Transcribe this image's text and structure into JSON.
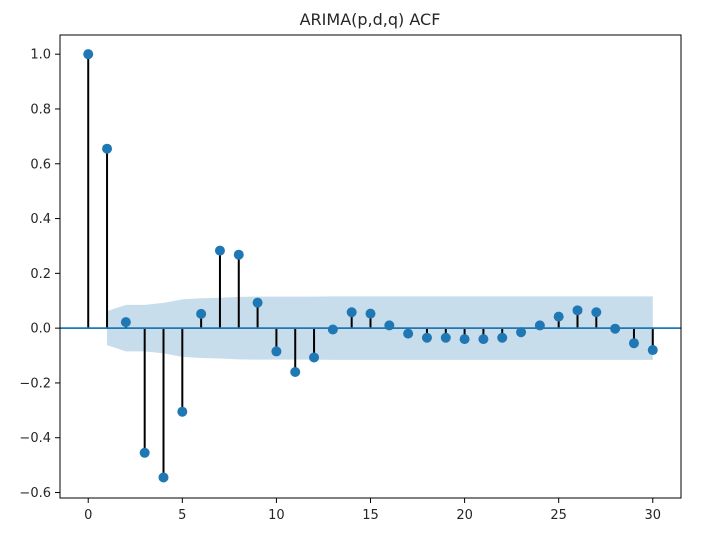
{
  "chart_data": {
    "type": "stem",
    "title": "ARIMA(p,d,q) ACF",
    "xlabel": "",
    "ylabel": "",
    "xlim": [
      -1.5,
      31.5
    ],
    "ylim": [
      -0.62,
      1.07
    ],
    "x_ticks": [
      0,
      5,
      10,
      15,
      20,
      25,
      30
    ],
    "y_ticks": [
      -0.6,
      -0.4,
      -0.2,
      0.0,
      0.2,
      0.4,
      0.6,
      0.8,
      1.0
    ],
    "y_tick_labels": [
      "−0.6",
      "−0.4",
      "−0.2",
      "0.0",
      "0.2",
      "0.4",
      "0.6",
      "0.8",
      "1.0"
    ],
    "x": [
      0,
      1,
      2,
      3,
      4,
      5,
      6,
      7,
      8,
      9,
      10,
      11,
      12,
      13,
      14,
      15,
      16,
      17,
      18,
      19,
      20,
      21,
      22,
      23,
      24,
      25,
      26,
      27,
      28,
      29,
      30
    ],
    "values": [
      1.0,
      0.655,
      0.022,
      -0.455,
      -0.545,
      -0.305,
      0.052,
      0.283,
      0.268,
      0.093,
      -0.085,
      -0.16,
      -0.107,
      -0.005,
      0.058,
      0.053,
      0.01,
      -0.02,
      -0.035,
      -0.035,
      -0.04,
      -0.04,
      -0.035,
      -0.015,
      0.01,
      0.042,
      0.065,
      0.058,
      -0.002,
      -0.055,
      -0.08
    ],
    "confidence_band": {
      "x": [
        1,
        2,
        3,
        4,
        5,
        6,
        7,
        8,
        9,
        10,
        11,
        12,
        13,
        14,
        15,
        16,
        17,
        18,
        19,
        20,
        21,
        22,
        23,
        24,
        25,
        26,
        27,
        28,
        29,
        30
      ],
      "upper": [
        0.062,
        0.085,
        0.085,
        0.092,
        0.105,
        0.109,
        0.111,
        0.114,
        0.115,
        0.115,
        0.115,
        0.115,
        0.116,
        0.116,
        0.116,
        0.116,
        0.116,
        0.116,
        0.116,
        0.116,
        0.116,
        0.116,
        0.116,
        0.116,
        0.116,
        0.116,
        0.116,
        0.116,
        0.116,
        0.116
      ]
    },
    "grid": false,
    "colors": {
      "marker": "#1f77b4",
      "stem": "#000000",
      "band": "#1f77b4",
      "zero_line": "#1f77b4"
    }
  }
}
